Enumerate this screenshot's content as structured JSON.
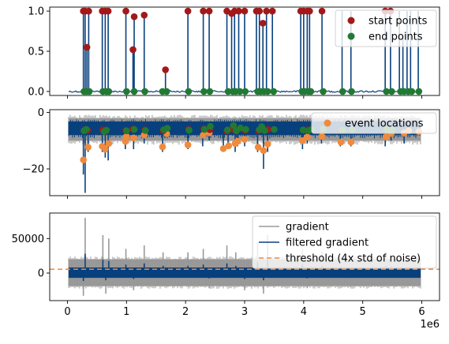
{
  "colors": {
    "signal": "#08407d",
    "noise": "#999999",
    "start": "#a31919",
    "end": "#207a33",
    "event": "#f08a3c",
    "threshold": "#f08a3c",
    "axis": "#000000",
    "legend_border": "#d0d0d0"
  },
  "chart_data": [
    {
      "type": "line",
      "panel": "top",
      "xlim": [
        -300000,
        6300000
      ],
      "ylim": [
        -0.05,
        1.05
      ],
      "yticks": [
        {
          "v": 0.0,
          "label": "0.0"
        },
        {
          "v": 0.5,
          "label": "0.5"
        },
        {
          "v": 1.0,
          "label": "1.0"
        }
      ],
      "grid": false,
      "legend_position": "top-right",
      "legend": [
        {
          "label": "start points",
          "marker": "circle",
          "color": "#a31919"
        },
        {
          "label": "end points",
          "marker": "circle",
          "color": "#207a33"
        }
      ],
      "baseline": 0.0,
      "spikes": [
        {
          "x": 270000,
          "y": 1.0
        },
        {
          "x": 300000,
          "y": 1.0
        },
        {
          "x": 330000,
          "y": 0.55
        },
        {
          "x": 360000,
          "y": 1.0
        },
        {
          "x": 590000,
          "y": 1.0
        },
        {
          "x": 640000,
          "y": 1.0
        },
        {
          "x": 690000,
          "y": 1.0
        },
        {
          "x": 990000,
          "y": 1.0
        },
        {
          "x": 1110000,
          "y": 0.52
        },
        {
          "x": 1130000,
          "y": 0.93
        },
        {
          "x": 1300000,
          "y": 0.95
        },
        {
          "x": 1660000,
          "y": 0.27
        },
        {
          "x": 2040000,
          "y": 1.0
        },
        {
          "x": 2300000,
          "y": 1.0
        },
        {
          "x": 2400000,
          "y": 1.0
        },
        {
          "x": 2700000,
          "y": 1.0
        },
        {
          "x": 2780000,
          "y": 0.97
        },
        {
          "x": 2830000,
          "y": 1.0
        },
        {
          "x": 2900000,
          "y": 1.0
        },
        {
          "x": 3000000,
          "y": 1.0
        },
        {
          "x": 3200000,
          "y": 1.0
        },
        {
          "x": 3250000,
          "y": 1.0
        },
        {
          "x": 3310000,
          "y": 0.85
        },
        {
          "x": 3370000,
          "y": 1.0
        },
        {
          "x": 3470000,
          "y": 1.0
        },
        {
          "x": 3950000,
          "y": 1.0
        },
        {
          "x": 4000000,
          "y": 1.0
        },
        {
          "x": 4060000,
          "y": 1.0
        },
        {
          "x": 4100000,
          "y": 1.0
        },
        {
          "x": 4310000,
          "y": 1.0
        },
        {
          "x": 4650000,
          "y": 1.0
        },
        {
          "x": 4800000,
          "y": 1.0
        },
        {
          "x": 5380000,
          "y": 1.0
        },
        {
          "x": 5470000,
          "y": 1.0
        },
        {
          "x": 5620000,
          "y": 1.0
        },
        {
          "x": 5680000,
          "y": 0.7
        },
        {
          "x": 5750000,
          "y": 1.0
        },
        {
          "x": 5810000,
          "y": 1.0
        },
        {
          "x": 5940000,
          "y": 1.0
        }
      ],
      "start_points": [
        {
          "x": 270000,
          "y": 1.0
        },
        {
          "x": 300000,
          "y": 1.0
        },
        {
          "x": 330000,
          "y": 0.55
        },
        {
          "x": 360000,
          "y": 1.0
        },
        {
          "x": 590000,
          "y": 1.0
        },
        {
          "x": 640000,
          "y": 1.0
        },
        {
          "x": 690000,
          "y": 1.0
        },
        {
          "x": 990000,
          "y": 1.0
        },
        {
          "x": 1110000,
          "y": 0.52
        },
        {
          "x": 1130000,
          "y": 0.93
        },
        {
          "x": 1300000,
          "y": 0.95
        },
        {
          "x": 1660000,
          "y": 0.27
        },
        {
          "x": 2040000,
          "y": 1.0
        },
        {
          "x": 2300000,
          "y": 1.0
        },
        {
          "x": 2400000,
          "y": 1.0
        },
        {
          "x": 2700000,
          "y": 1.0
        },
        {
          "x": 2780000,
          "y": 0.97
        },
        {
          "x": 2830000,
          "y": 1.0
        },
        {
          "x": 2900000,
          "y": 1.0
        },
        {
          "x": 3000000,
          "y": 1.0
        },
        {
          "x": 3200000,
          "y": 1.0
        },
        {
          "x": 3250000,
          "y": 1.0
        },
        {
          "x": 3310000,
          "y": 0.85
        },
        {
          "x": 3370000,
          "y": 1.0
        },
        {
          "x": 3470000,
          "y": 1.0
        },
        {
          "x": 3950000,
          "y": 1.0
        },
        {
          "x": 4000000,
          "y": 1.0
        },
        {
          "x": 4060000,
          "y": 1.0
        },
        {
          "x": 4100000,
          "y": 1.0
        },
        {
          "x": 4310000,
          "y": 1.0
        },
        {
          "x": 5380000,
          "y": 1.0
        },
        {
          "x": 5470000,
          "y": 1.0
        }
      ],
      "end_points": [
        {
          "x": 280000,
          "y": 0.0
        },
        {
          "x": 320000,
          "y": 0.0
        },
        {
          "x": 370000,
          "y": 0.0
        },
        {
          "x": 600000,
          "y": 0.0
        },
        {
          "x": 660000,
          "y": 0.0
        },
        {
          "x": 700000,
          "y": 0.0
        },
        {
          "x": 1000000,
          "y": 0.0
        },
        {
          "x": 1130000,
          "y": 0.0
        },
        {
          "x": 1310000,
          "y": 0.0
        },
        {
          "x": 1610000,
          "y": 0.0
        },
        {
          "x": 1680000,
          "y": 0.0
        },
        {
          "x": 2050000,
          "y": 0.0
        },
        {
          "x": 2310000,
          "y": 0.0
        },
        {
          "x": 2410000,
          "y": 0.0
        },
        {
          "x": 2720000,
          "y": 0.0
        },
        {
          "x": 2800000,
          "y": 0.0
        },
        {
          "x": 2850000,
          "y": 0.0
        },
        {
          "x": 2920000,
          "y": 0.0
        },
        {
          "x": 3010000,
          "y": 0.0
        },
        {
          "x": 3220000,
          "y": 0.0
        },
        {
          "x": 3270000,
          "y": 0.0
        },
        {
          "x": 3330000,
          "y": 0.0
        },
        {
          "x": 3390000,
          "y": 0.0
        },
        {
          "x": 3490000,
          "y": 0.0
        },
        {
          "x": 3970000,
          "y": 0.0
        },
        {
          "x": 4020000,
          "y": 0.0
        },
        {
          "x": 4080000,
          "y": 0.0
        },
        {
          "x": 4120000,
          "y": 0.0
        },
        {
          "x": 4330000,
          "y": 0.0
        },
        {
          "x": 4660000,
          "y": 0.0
        },
        {
          "x": 4810000,
          "y": 0.0
        },
        {
          "x": 5400000,
          "y": 0.0
        },
        {
          "x": 5490000,
          "y": 0.0
        },
        {
          "x": 5640000,
          "y": 0.0
        },
        {
          "x": 5700000,
          "y": 0.0
        },
        {
          "x": 5770000,
          "y": 0.0
        },
        {
          "x": 5830000,
          "y": 0.0
        },
        {
          "x": 5950000,
          "y": 0.0
        }
      ]
    },
    {
      "type": "line",
      "panel": "middle",
      "xlim": [
        -300000,
        6300000
      ],
      "ylim": [
        -29.5,
        1.0
      ],
      "yticks": [
        {
          "v": 0,
          "label": "0"
        },
        {
          "v": -20,
          "label": "−20"
        }
      ],
      "grid": false,
      "legend_position": "top-right",
      "legend": [
        {
          "label": "event locations",
          "marker": "circle",
          "color": "#f08a3c"
        }
      ],
      "band_gray": [
        -10.0,
        -2.0
      ],
      "band_blue": [
        -8.0,
        -3.2
      ],
      "dips": [
        {
          "x": 270000,
          "y": -22.0
        },
        {
          "x": 300000,
          "y": -28.5
        },
        {
          "x": 350000,
          "y": -14.0
        },
        {
          "x": 590000,
          "y": -14.0
        },
        {
          "x": 640000,
          "y": -16.0
        },
        {
          "x": 690000,
          "y": -17.0
        },
        {
          "x": 980000,
          "y": -13.0
        },
        {
          "x": 1000000,
          "y": -11.0
        },
        {
          "x": 1120000,
          "y": -13.0
        },
        {
          "x": 1300000,
          "y": -11.0
        },
        {
          "x": 1610000,
          "y": -14.0
        },
        {
          "x": 1650000,
          "y": -9.0
        },
        {
          "x": 2040000,
          "y": -13.0
        },
        {
          "x": 2290000,
          "y": -12.0
        },
        {
          "x": 2400000,
          "y": -10.0
        },
        {
          "x": 2640000,
          "y": -14.0
        },
        {
          "x": 2720000,
          "y": -13.0
        },
        {
          "x": 2840000,
          "y": -14.0
        },
        {
          "x": 2880000,
          "y": -12.0
        },
        {
          "x": 3000000,
          "y": -12.0
        },
        {
          "x": 3220000,
          "y": -14.0
        },
        {
          "x": 3320000,
          "y": -20.0
        },
        {
          "x": 3390000,
          "y": -14.0
        },
        {
          "x": 3980000,
          "y": -13.0
        },
        {
          "x": 4060000,
          "y": -11.0
        },
        {
          "x": 4300000,
          "y": -11.0
        },
        {
          "x": 4620000,
          "y": -12.0
        },
        {
          "x": 4800000,
          "y": -12.0
        },
        {
          "x": 5380000,
          "y": -12.0
        },
        {
          "x": 5480000,
          "y": -10.0
        },
        {
          "x": 5700000,
          "y": -11.0
        }
      ],
      "event_locations": [
        {
          "x": 270000,
          "y": -16.8
        },
        {
          "x": 350000,
          "y": -12.3
        },
        {
          "x": 590000,
          "y": -12.0
        },
        {
          "x": 640000,
          "y": -13.0
        },
        {
          "x": 700000,
          "y": -11.0
        },
        {
          "x": 980000,
          "y": -10.2
        },
        {
          "x": 1000000,
          "y": -8.5
        },
        {
          "x": 1120000,
          "y": -9.0
        },
        {
          "x": 1300000,
          "y": -8.0
        },
        {
          "x": 1610000,
          "y": -12.2
        },
        {
          "x": 1680000,
          "y": -7.5
        },
        {
          "x": 2040000,
          "y": -11.5
        },
        {
          "x": 2300000,
          "y": -8.0
        },
        {
          "x": 2400000,
          "y": -7.2
        },
        {
          "x": 2640000,
          "y": -12.8
        },
        {
          "x": 2730000,
          "y": -11.8
        },
        {
          "x": 2840000,
          "y": -11.0
        },
        {
          "x": 2880000,
          "y": -10.2
        },
        {
          "x": 3000000,
          "y": -9.5
        },
        {
          "x": 3230000,
          "y": -12.3
        },
        {
          "x": 3320000,
          "y": -13.5
        },
        {
          "x": 3390000,
          "y": -11.2
        },
        {
          "x": 3980000,
          "y": -10.0
        },
        {
          "x": 4060000,
          "y": -8.7
        },
        {
          "x": 4310000,
          "y": -8.5
        },
        {
          "x": 4630000,
          "y": -10.5
        },
        {
          "x": 4800000,
          "y": -10.5
        },
        {
          "x": 5390000,
          "y": -8.7
        },
        {
          "x": 5480000,
          "y": -7.5
        },
        {
          "x": 5700000,
          "y": -7.3
        },
        {
          "x": 5780000,
          "y": -6.5
        },
        {
          "x": 5950000,
          "y": -6.8
        }
      ],
      "start_points": [
        {
          "x": 300000,
          "y": -6.0
        },
        {
          "x": 340000,
          "y": -6.3
        },
        {
          "x": 600000,
          "y": -6.1
        },
        {
          "x": 650000,
          "y": -6.6
        },
        {
          "x": 990000,
          "y": -6.4
        },
        {
          "x": 1110000,
          "y": -5.9
        },
        {
          "x": 1310000,
          "y": -6.2
        },
        {
          "x": 1620000,
          "y": -6.5
        },
        {
          "x": 2050000,
          "y": -6.0
        },
        {
          "x": 2310000,
          "y": -5.8
        },
        {
          "x": 2410000,
          "y": -6.1
        },
        {
          "x": 2700000,
          "y": -6.6
        },
        {
          "x": 2790000,
          "y": -5.9
        },
        {
          "x": 2890000,
          "y": -6.0
        },
        {
          "x": 3010000,
          "y": -6.3
        },
        {
          "x": 3240000,
          "y": -6.5
        },
        {
          "x": 3330000,
          "y": -6.2
        },
        {
          "x": 3400000,
          "y": -6.0
        },
        {
          "x": 4000000,
          "y": -6.4
        },
        {
          "x": 4070000,
          "y": -6.1
        },
        {
          "x": 4320000,
          "y": -6.0
        },
        {
          "x": 4640000,
          "y": -6.3
        },
        {
          "x": 5400000,
          "y": -6.0
        },
        {
          "x": 5490000,
          "y": -6.2
        }
      ],
      "end_points": [
        {
          "x": 280000,
          "y": -6.5
        },
        {
          "x": 320000,
          "y": -6.0
        },
        {
          "x": 620000,
          "y": -6.8
        },
        {
          "x": 660000,
          "y": -6.3
        },
        {
          "x": 1000000,
          "y": -6.5
        },
        {
          "x": 1130000,
          "y": -6.0
        },
        {
          "x": 1320000,
          "y": -6.4
        },
        {
          "x": 1630000,
          "y": -6.1
        },
        {
          "x": 1690000,
          "y": -5.6
        },
        {
          "x": 2060000,
          "y": -6.3
        },
        {
          "x": 2320000,
          "y": -6.0
        },
        {
          "x": 2420000,
          "y": -4.9
        },
        {
          "x": 2710000,
          "y": -6.2
        },
        {
          "x": 2810000,
          "y": -4.6
        },
        {
          "x": 2860000,
          "y": -6.5
        },
        {
          "x": 2930000,
          "y": -5.5
        },
        {
          "x": 3020000,
          "y": -6.0
        },
        {
          "x": 3250000,
          "y": -6.1
        },
        {
          "x": 3290000,
          "y": -5.0
        },
        {
          "x": 3340000,
          "y": -6.4
        },
        {
          "x": 3500000,
          "y": -6.0
        },
        {
          "x": 3990000,
          "y": -6.2
        },
        {
          "x": 4080000,
          "y": -6.5
        },
        {
          "x": 4130000,
          "y": -6.0
        },
        {
          "x": 4330000,
          "y": -5.8
        },
        {
          "x": 4660000,
          "y": -6.4
        },
        {
          "x": 4820000,
          "y": -6.1
        },
        {
          "x": 5410000,
          "y": -6.0
        },
        {
          "x": 5500000,
          "y": -6.3
        }
      ]
    },
    {
      "type": "line",
      "panel": "bottom",
      "xlim": [
        -300000,
        6300000
      ],
      "ylim": [
        -40000,
        87000
      ],
      "yticks": [
        {
          "v": 0,
          "label": "0"
        },
        {
          "v": 50000,
          "label": "50000"
        }
      ],
      "xticks": [
        {
          "v": 0,
          "label": "0"
        },
        {
          "v": 1000000,
          "label": "1"
        },
        {
          "v": 2000000,
          "label": "2"
        },
        {
          "v": 3000000,
          "label": "3"
        },
        {
          "v": 4000000,
          "label": "4"
        },
        {
          "v": 5000000,
          "label": "5"
        },
        {
          "v": 6000000,
          "label": "6"
        }
      ],
      "x_offset_label": "1e6",
      "grid": false,
      "legend_position": "top-right",
      "legend": [
        {
          "label": "gradient",
          "style": "line",
          "color": "#999999"
        },
        {
          "label": "filtered gradient",
          "style": "line",
          "color": "#08407d"
        },
        {
          "label": "threshold (4x std of noise)",
          "style": "dashed",
          "color": "#f08a3c"
        }
      ],
      "threshold": 5500,
      "band_gray": [
        -19000,
        20000
      ],
      "band_blue": [
        -7000,
        8000
      ],
      "spikes": [
        {
          "x": 300000,
          "y": 80000
        },
        {
          "x": 270000,
          "y": -33000
        },
        {
          "x": 600000,
          "y": 55000
        },
        {
          "x": 650000,
          "y": -30000
        },
        {
          "x": 700000,
          "y": 50000
        },
        {
          "x": 990000,
          "y": 35000
        },
        {
          "x": 1120000,
          "y": -25000
        },
        {
          "x": 1300000,
          "y": 40000
        },
        {
          "x": 1620000,
          "y": 30000
        },
        {
          "x": 2040000,
          "y": 30000
        },
        {
          "x": 2300000,
          "y": 35000
        },
        {
          "x": 2400000,
          "y": -22000
        },
        {
          "x": 2700000,
          "y": 40000
        },
        {
          "x": 2850000,
          "y": 30000
        },
        {
          "x": 3000000,
          "y": -25000
        },
        {
          "x": 3220000,
          "y": 45000
        },
        {
          "x": 3320000,
          "y": -30000
        },
        {
          "x": 3390000,
          "y": 55000
        },
        {
          "x": 3980000,
          "y": 35000
        },
        {
          "x": 4060000,
          "y": -22000
        },
        {
          "x": 4310000,
          "y": 30000
        },
        {
          "x": 4640000,
          "y": 25000
        },
        {
          "x": 4800000,
          "y": -20000
        },
        {
          "x": 5390000,
          "y": 30000
        },
        {
          "x": 5480000,
          "y": 25000
        },
        {
          "x": 5700000,
          "y": -18000
        }
      ]
    }
  ]
}
